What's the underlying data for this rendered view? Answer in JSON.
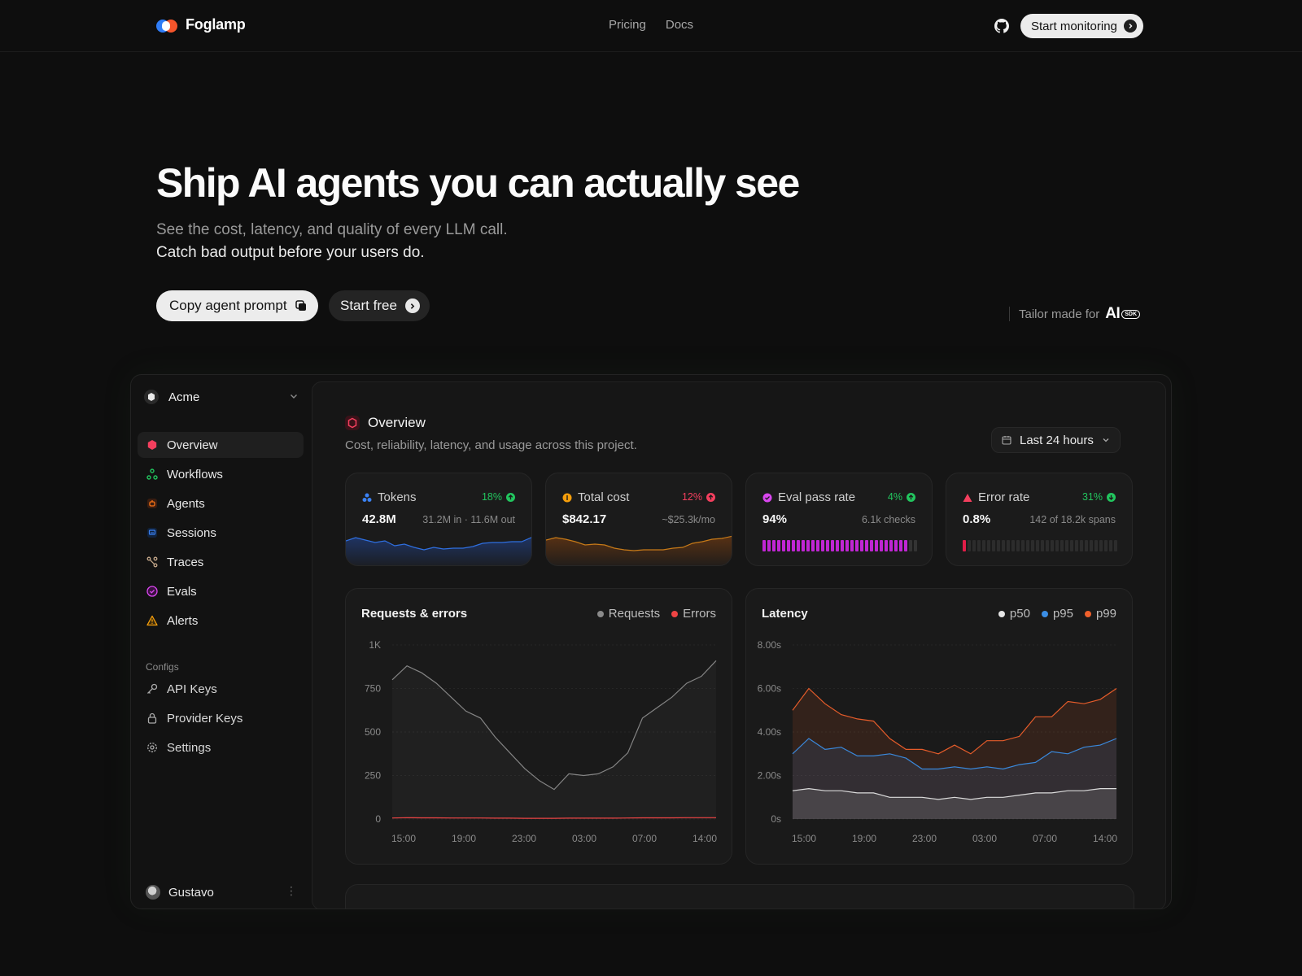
{
  "brand": {
    "name": "Foglamp"
  },
  "nav": {
    "links": [
      "Pricing",
      "Docs"
    ],
    "cta": "Start monitoring"
  },
  "hero": {
    "title": "Ship AI agents you can actually see",
    "subtitle_line1": "See the cost, latency, and quality of every LLM call.",
    "subtitle_line2": "Catch bad output before your users do.",
    "copy_button": "Copy agent prompt",
    "start_button": "Start free",
    "tailor_text": "Tailor made for",
    "tailor_logo": "AI",
    "tailor_badge": "SDK"
  },
  "sidebar": {
    "org": "Acme",
    "items": [
      {
        "label": "Overview",
        "icon": "hexagon-icon",
        "color": "#f43f5e",
        "active": true
      },
      {
        "label": "Workflows",
        "icon": "workflow-icon",
        "color": "#22c55e"
      },
      {
        "label": "Agents",
        "icon": "agent-icon",
        "color": "#f97316"
      },
      {
        "label": "Sessions",
        "icon": "chat-icon",
        "color": "#3b82f6"
      },
      {
        "label": "Traces",
        "icon": "trace-icon",
        "color": "#c4a78a"
      },
      {
        "label": "Evals",
        "icon": "eval-icon",
        "color": "#d946ef"
      },
      {
        "label": "Alerts",
        "icon": "alert-icon",
        "color": "#f59e0b"
      }
    ],
    "configs_label": "Configs",
    "configs": [
      {
        "label": "API Keys",
        "icon": "key-icon"
      },
      {
        "label": "Provider Keys",
        "icon": "lock-icon"
      },
      {
        "label": "Settings",
        "icon": "gear-icon"
      }
    ],
    "user": "Gustavo"
  },
  "overview": {
    "title": "Overview",
    "description": "Cost, reliability, latency, and usage across this project.",
    "range": "Last 24 hours"
  },
  "kpis": [
    {
      "title": "Tokens",
      "delta": "18%",
      "delta_dir": "up",
      "delta_color": "#22c55e",
      "value": "42.8M",
      "sub": "31.2M in · 11.6M out",
      "icon": "tokens-icon",
      "icon_color": "#3b82f6"
    },
    {
      "title": "Total cost",
      "delta": "12%",
      "delta_dir": "up",
      "delta_color": "#f43f5e",
      "value": "$842.17",
      "sub": "~$25.3k/mo",
      "icon": "coin-icon",
      "icon_color": "#f59e0b"
    },
    {
      "title": "Eval pass rate",
      "delta": "4%",
      "delta_dir": "up",
      "delta_color": "#22c55e",
      "value": "94%",
      "sub": "6.1k checks",
      "icon": "eval-icon",
      "icon_color": "#d946ef",
      "pass_fraction": 0.94
    },
    {
      "title": "Error rate",
      "delta": "31%",
      "delta_dir": "down",
      "delta_color": "#22c55e",
      "value": "0.8%",
      "sub": "142 of 18.2k spans",
      "icon": "warning-icon",
      "icon_color": "#f43f5e",
      "error_fraction": 0.008
    }
  ],
  "chart_data": [
    {
      "type": "area",
      "title": "Requests & errors",
      "x_ticks": [
        "15:00",
        "19:00",
        "23:00",
        "03:00",
        "07:00",
        "14:00"
      ],
      "y_ticks": [
        "1K",
        "750",
        "500",
        "250",
        "0"
      ],
      "ylim": [
        0,
        1000
      ],
      "series": [
        {
          "name": "Requests",
          "color": "#8a8a8a",
          "values": [
            800,
            880,
            840,
            780,
            700,
            620,
            580,
            470,
            380,
            290,
            220,
            170,
            260,
            250,
            260,
            300,
            380,
            580,
            640,
            700,
            780,
            820,
            910
          ]
        },
        {
          "name": "Errors",
          "color": "#ef4444",
          "values": [
            6,
            8,
            7,
            7,
            6,
            6,
            6,
            5,
            5,
            4,
            4,
            4,
            5,
            5,
            5,
            5,
            6,
            7,
            7,
            7,
            8,
            8,
            8
          ]
        }
      ]
    },
    {
      "type": "area",
      "title": "Latency",
      "x_ticks": [
        "15:00",
        "19:00",
        "23:00",
        "03:00",
        "07:00",
        "14:00"
      ],
      "y_ticks": [
        "8.00s",
        "6.00s",
        "4.00s",
        "2.00s",
        "0s"
      ],
      "ylim": [
        0,
        8
      ],
      "series": [
        {
          "name": "p50",
          "color": "#e5e5e5",
          "values": [
            1.3,
            1.4,
            1.3,
            1.3,
            1.2,
            1.2,
            1.0,
            1.0,
            1.0,
            0.9,
            1.0,
            0.9,
            1.0,
            1.0,
            1.1,
            1.2,
            1.2,
            1.3,
            1.3,
            1.4,
            1.4
          ]
        },
        {
          "name": "p95",
          "color": "#3b8ee6",
          "values": [
            3.0,
            3.7,
            3.2,
            3.3,
            2.9,
            2.9,
            3.0,
            2.8,
            2.3,
            2.3,
            2.4,
            2.3,
            2.4,
            2.3,
            2.5,
            2.6,
            3.1,
            3.0,
            3.3,
            3.4,
            3.7
          ]
        },
        {
          "name": "p99",
          "color": "#f0602b",
          "values": [
            5.0,
            6.0,
            5.3,
            4.8,
            4.6,
            4.5,
            3.7,
            3.2,
            3.2,
            3.0,
            3.4,
            3.0,
            3.6,
            3.6,
            3.8,
            4.7,
            4.7,
            5.4,
            5.3,
            5.5,
            6.0
          ]
        }
      ]
    }
  ]
}
